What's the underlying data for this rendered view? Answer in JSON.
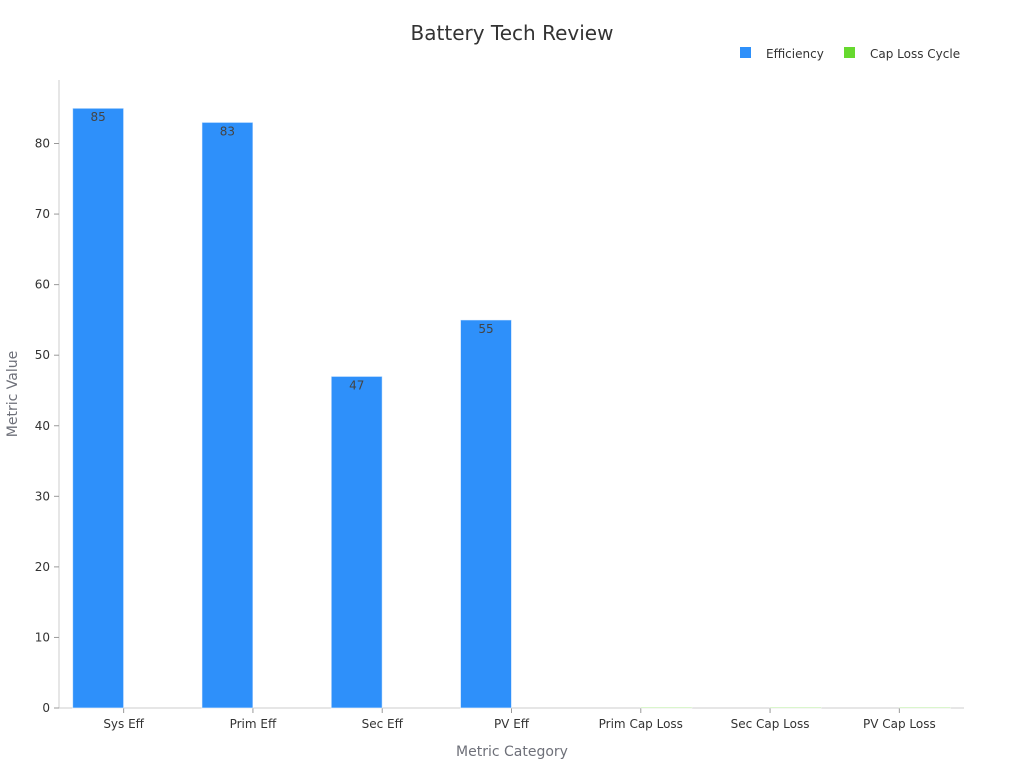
{
  "chart_data": {
    "type": "bar",
    "title": "Battery Tech Review",
    "xlabel": "Metric Category",
    "ylabel": "Metric Value",
    "categories": [
      "Sys Eff",
      "Prim Eff",
      "Sec Eff",
      "PV Eff",
      "Prim Cap Loss",
      "Sec Cap Loss",
      "PV Cap Loss"
    ],
    "ylim": [
      0,
      89
    ],
    "yticks": [
      0,
      10,
      20,
      30,
      40,
      50,
      60,
      70,
      80
    ],
    "grid": false,
    "legend_position": "top-right",
    "series": [
      {
        "name": "Efficiency",
        "color": "#2e90fa",
        "values": [
          85,
          83,
          47,
          55,
          null,
          null,
          null
        ],
        "labels": [
          "85",
          "83",
          "47",
          "55",
          "",
          "",
          ""
        ]
      },
      {
        "name": "Cap Loss Cycle",
        "color": "#66d92e",
        "values": [
          null,
          null,
          null,
          null,
          0.008,
          0.025,
          0.01
        ],
        "labels": [
          "",
          "",
          "",
          "",
          "",
          "",
          ""
        ]
      }
    ]
  }
}
